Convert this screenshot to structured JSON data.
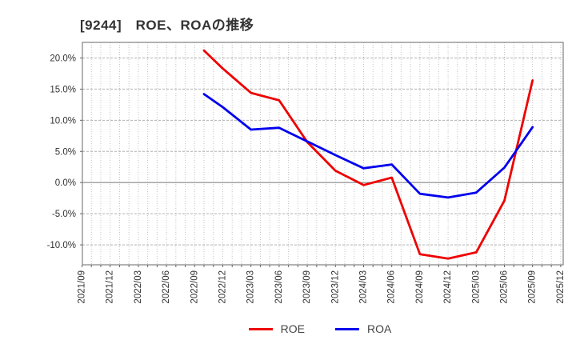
{
  "title": "[9244]　ROE、ROAの推移",
  "legend": {
    "position": "bottom-center",
    "entries": [
      "ROE",
      "ROA"
    ]
  },
  "colors": {
    "roe": "#ee0000",
    "roa": "#0000ee",
    "grid": "#c3c3c3",
    "grid_major": "#b0b0b0",
    "zero_line": "#888888",
    "axis_border": "#808080",
    "tick_text": "#333333",
    "title_text": "#333333"
  },
  "chart_data": {
    "type": "line",
    "title": "[9244]　ROE、ROAの推移",
    "xlabel": "",
    "ylabel": "",
    "y_unit": "%",
    "ylim": [
      -13.2,
      22.5
    ],
    "y_ticks": [
      20,
      15,
      10,
      5,
      0,
      -5,
      -10
    ],
    "y_tick_labels": [
      "20.0%",
      "15.0%",
      "10.0%",
      "5.0%",
      "0.0%",
      "-5.0%",
      "-10.0%"
    ],
    "x_tick_labels": [
      "2021/09",
      "2021/12",
      "2022/03",
      "2022/06",
      "2022/09",
      "2022/12",
      "2023/03",
      "2023/06",
      "2023/09",
      "2023/12",
      "2024/03",
      "2024/06",
      "2024/09",
      "2024/12",
      "2025/03",
      "2025/06",
      "2025/09",
      "2025/12"
    ],
    "grid": "on",
    "legend_position": "bottom-center",
    "series": [
      {
        "name": "ROE",
        "color": "#ee0000",
        "points": [
          {
            "date": "2022/10",
            "value": 21.2
          },
          {
            "date": "2022/12",
            "value": 18.3
          },
          {
            "date": "2023/03",
            "value": 14.4
          },
          {
            "date": "2023/06",
            "value": 13.2
          },
          {
            "date": "2023/09",
            "value": 6.5
          },
          {
            "date": "2023/12",
            "value": 1.9
          },
          {
            "date": "2024/03",
            "value": -0.4
          },
          {
            "date": "2024/06",
            "value": 0.8
          },
          {
            "date": "2024/09",
            "value": -11.5
          },
          {
            "date": "2024/12",
            "value": -12.2
          },
          {
            "date": "2025/03",
            "value": -11.2
          },
          {
            "date": "2025/06",
            "value": -2.9
          },
          {
            "date": "2025/09",
            "value": 16.4
          }
        ]
      },
      {
        "name": "ROA",
        "color": "#0000ee",
        "points": [
          {
            "date": "2022/10",
            "value": 14.2
          },
          {
            "date": "2022/12",
            "value": 12.1
          },
          {
            "date": "2023/03",
            "value": 8.5
          },
          {
            "date": "2023/06",
            "value": 8.8
          },
          {
            "date": "2023/09",
            "value": 6.6
          },
          {
            "date": "2023/12",
            "value": 4.4
          },
          {
            "date": "2024/03",
            "value": 2.3
          },
          {
            "date": "2024/06",
            "value": 2.9
          },
          {
            "date": "2024/09",
            "value": -1.8
          },
          {
            "date": "2024/12",
            "value": -2.4
          },
          {
            "date": "2025/03",
            "value": -1.6
          },
          {
            "date": "2025/06",
            "value": 2.4
          },
          {
            "date": "2025/09",
            "value": 8.9
          }
        ]
      }
    ]
  }
}
